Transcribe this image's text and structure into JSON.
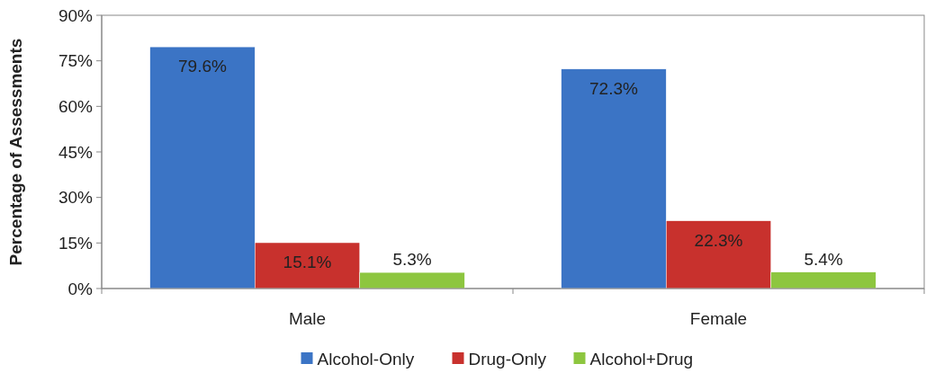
{
  "chart_data": {
    "type": "bar",
    "ylabel": "Percentage of Assessments",
    "categories": [
      "Male",
      "Female"
    ],
    "series": [
      {
        "name": "Alcohol-Only",
        "color": "#3b74c5",
        "values": [
          79.6,
          72.3
        ],
        "value_labels": [
          "79.6%",
          "72.3%"
        ]
      },
      {
        "name": "Drug-Only",
        "color": "#c8312d",
        "values": [
          15.1,
          22.3
        ],
        "value_labels": [
          "15.1%",
          "22.3%"
        ]
      },
      {
        "name": "Alcohol+Drug",
        "color": "#8dc63f",
        "values": [
          5.3,
          5.4
        ],
        "value_labels": [
          "5.3%",
          "5.4%"
        ]
      }
    ],
    "ylim": [
      0,
      90
    ],
    "yticks": [
      {
        "value": 0,
        "label": "0%"
      },
      {
        "value": 15,
        "label": "15%"
      },
      {
        "value": 30,
        "label": "30%"
      },
      {
        "value": 45,
        "label": "45%"
      },
      {
        "value": 60,
        "label": "60%"
      },
      {
        "value": 75,
        "label": "75%"
      },
      {
        "value": 90,
        "label": "90%"
      }
    ],
    "grid": false,
    "legend": "bottom"
  }
}
